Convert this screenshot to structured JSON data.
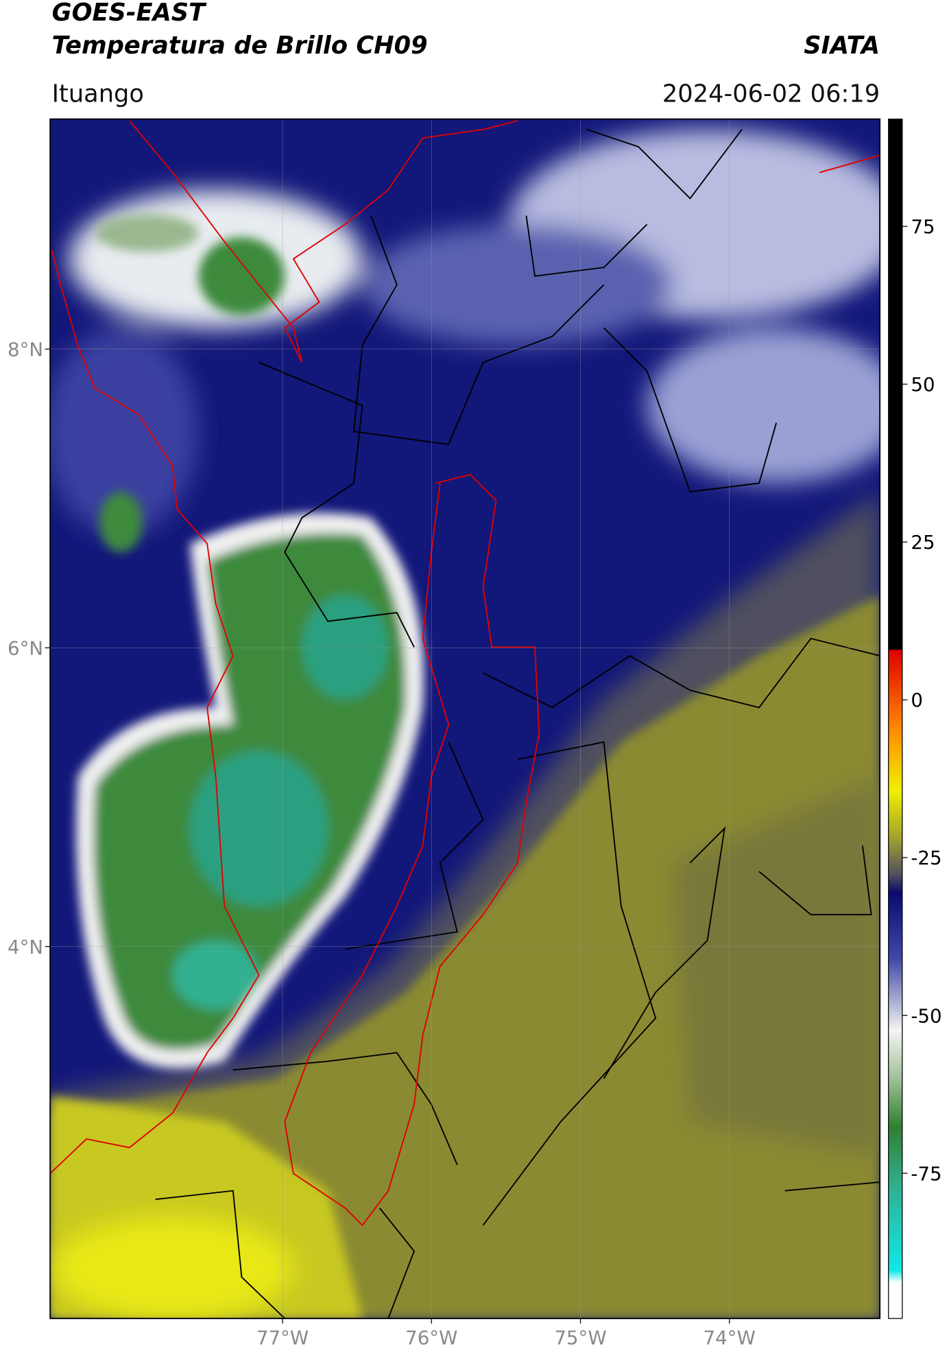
{
  "header": {
    "title": "GOES-EAST",
    "subtitle": "Temperatura de Brillo CH09",
    "source": "SIATA",
    "location": "Ituango",
    "datetime": "2024-06-02 06:19"
  },
  "map": {
    "type": "map",
    "xlim": [
      -78.56,
      -72.99
    ],
    "ylim": [
      1.51,
      9.54
    ],
    "xticks": [
      {
        "value": -77,
        "label": "77°W"
      },
      {
        "value": -76,
        "label": "76°W"
      },
      {
        "value": -75,
        "label": "75°W"
      },
      {
        "value": -74,
        "label": "74°W"
      }
    ],
    "yticks": [
      {
        "value": 8,
        "label": "8°N"
      },
      {
        "value": 6,
        "label": "6°N"
      },
      {
        "value": 4,
        "label": "4°N"
      }
    ],
    "grid": true
  },
  "colorbar": {
    "lim": [
      -98,
      92
    ],
    "ticks": [
      75,
      50,
      25,
      0,
      -25,
      -50,
      -75
    ]
  }
}
